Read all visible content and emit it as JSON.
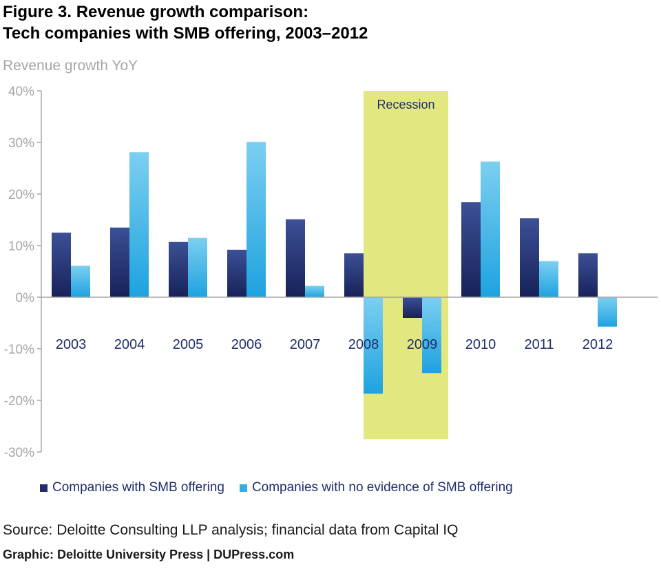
{
  "figure": {
    "title_line1": "Figure 3. Revenue growth comparison:",
    "title_line2": "Tech companies with SMB offering, 2003–2012"
  },
  "chart_data": {
    "type": "bar",
    "ylabel": "Revenue growth YoY",
    "ylim": [
      -30,
      40
    ],
    "yticks": [
      40,
      30,
      20,
      10,
      0,
      -10,
      -20,
      -30
    ],
    "ytick_labels": [
      "40%",
      "30%",
      "20%",
      "10%",
      "0%",
      "-10%",
      "-20%",
      "-30%"
    ],
    "categories": [
      "2003",
      "2004",
      "2005",
      "2006",
      "2007",
      "2008",
      "2009",
      "2010",
      "2011",
      "2012"
    ],
    "series": [
      {
        "name": "Companies with SMB offering",
        "color": "#1f2d6b",
        "values": [
          12.5,
          13.5,
          10.7,
          9.2,
          15.1,
          8.5,
          -4.0,
          18.4,
          15.3,
          8.5
        ]
      },
      {
        "name": "Companies with no evidence of SMB offering",
        "color": "#35ace4",
        "values": [
          6.1,
          28.1,
          11.5,
          30.1,
          2.2,
          -18.7,
          -14.7,
          26.3,
          7.0,
          -5.7
        ]
      }
    ],
    "annotation": {
      "label": "Recession",
      "color": "#e3e77f",
      "span_categories": [
        "2008",
        "2009"
      ],
      "y_range": [
        -27.5,
        40
      ]
    },
    "grid": false,
    "legend_position": "bottom-left"
  },
  "footer": {
    "source": "Source: Deloitte Consulting LLP analysis; financial data from Capital IQ",
    "credit": "Graphic: Deloitte University Press  |  DUPress.com"
  }
}
